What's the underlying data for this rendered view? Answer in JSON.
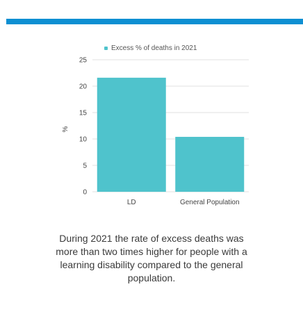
{
  "chart_data": {
    "type": "bar",
    "categories": [
      "LD",
      "General Population"
    ],
    "series": [
      {
        "name": "Excess % of deaths in 2021",
        "values": [
          21.6,
          10.4
        ]
      }
    ],
    "ylabel": "%",
    "ylim": [
      0,
      25
    ],
    "yticks": [
      0,
      5,
      10,
      15,
      20,
      25
    ],
    "grid": true,
    "legend": "top-center",
    "bar_color": "#4fc3cc"
  },
  "caption": "During 2021 the rate of excess deaths was more than two times higher for people with a learning disability compared to the general population.",
  "colors": {
    "accent_bar": "#0d8fd2",
    "grid": "#e2e2e2",
    "axis_text": "#444444"
  }
}
